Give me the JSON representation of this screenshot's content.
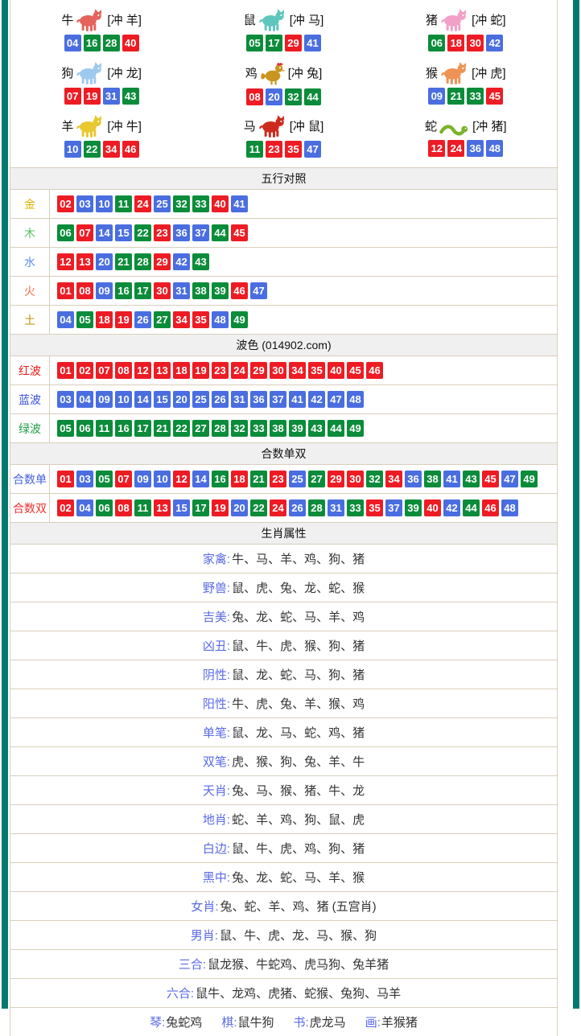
{
  "colors": {
    "frame": "#03796D",
    "table_border": "#D8CFBC",
    "header_bg": "#F0F0F0",
    "attr_label": "#5A6AE6"
  },
  "palette": {
    "red": "#ED1C24",
    "blue": "#4A6EE0",
    "green": "#0B8C3A"
  },
  "number_groups": {
    "red": [
      "01",
      "02",
      "07",
      "08",
      "12",
      "13",
      "18",
      "19",
      "23",
      "24",
      "29",
      "30",
      "34",
      "35",
      "40",
      "45",
      "46"
    ],
    "blue": [
      "03",
      "04",
      "09",
      "10",
      "14",
      "15",
      "20",
      "25",
      "26",
      "31",
      "36",
      "37",
      "41",
      "42",
      "47",
      "48"
    ],
    "green": [
      "05",
      "06",
      "11",
      "16",
      "17",
      "21",
      "22",
      "27",
      "28",
      "32",
      "33",
      "38",
      "39",
      "43",
      "44",
      "49"
    ]
  },
  "zodiac": {
    "cells": [
      {
        "name": "牛",
        "icon": "ox-icon",
        "shape": "quadruped",
        "color": "#E4635C",
        "clash": "[冲 羊]",
        "numbers": [
          "04",
          "16",
          "28",
          "40"
        ]
      },
      {
        "name": "鼠",
        "icon": "rat-icon",
        "shape": "quadruped",
        "color": "#5FC6BE",
        "clash": "[冲 马]",
        "numbers": [
          "05",
          "17",
          "29",
          "41"
        ]
      },
      {
        "name": "猪",
        "icon": "pig-icon",
        "shape": "quadruped",
        "color": "#F2A0C8",
        "clash": "[冲 蛇]",
        "numbers": [
          "06",
          "18",
          "30",
          "42"
        ]
      },
      {
        "name": "狗",
        "icon": "dog-icon",
        "shape": "quadruped",
        "color": "#9EC9EE",
        "clash": "[冲 龙]",
        "numbers": [
          "07",
          "19",
          "31",
          "43"
        ]
      },
      {
        "name": "鸡",
        "icon": "rooster-icon",
        "shape": "bird",
        "color": "#C99521",
        "clash": "[冲 兔]",
        "numbers": [
          "08",
          "20",
          "32",
          "44"
        ]
      },
      {
        "name": "猴",
        "icon": "monkey-icon",
        "shape": "quadruped",
        "color": "#EF9256",
        "clash": "[冲 虎]",
        "numbers": [
          "09",
          "21",
          "33",
          "45"
        ]
      },
      {
        "name": "羊",
        "icon": "goat-icon",
        "shape": "quadruped",
        "color": "#E9C832",
        "clash": "[冲 牛]",
        "numbers": [
          "10",
          "22",
          "34",
          "46"
        ]
      },
      {
        "name": "马",
        "icon": "horse-icon",
        "shape": "quadruped",
        "color": "#CD2A1E",
        "clash": "[冲 鼠]",
        "numbers": [
          "11",
          "23",
          "35",
          "47"
        ]
      },
      {
        "name": "蛇",
        "icon": "snake-icon",
        "shape": "snake",
        "color": "#7AB32A",
        "clash": "[冲 猪]",
        "numbers": [
          "12",
          "24",
          "36",
          "48"
        ]
      }
    ]
  },
  "sections": [
    {
      "title": "五行对照",
      "rows": [
        {
          "label": "金",
          "label_color": "#E0B400",
          "numbers": [
            "02",
            "03",
            "10",
            "11",
            "24",
            "25",
            "32",
            "33",
            "40",
            "41"
          ]
        },
        {
          "label": "木",
          "label_color": "#55C060",
          "numbers": [
            "06",
            "07",
            "14",
            "15",
            "22",
            "23",
            "36",
            "37",
            "44",
            "45"
          ]
        },
        {
          "label": "水",
          "label_color": "#5B8DEF",
          "numbers": [
            "12",
            "13",
            "20",
            "21",
            "28",
            "29",
            "42",
            "43"
          ]
        },
        {
          "label": "火",
          "label_color": "#F87247",
          "numbers": [
            "01",
            "08",
            "09",
            "16",
            "17",
            "30",
            "31",
            "38",
            "39",
            "46",
            "47"
          ]
        },
        {
          "label": "土",
          "label_color": "#B89200",
          "numbers": [
            "04",
            "05",
            "18",
            "19",
            "26",
            "27",
            "34",
            "35",
            "48",
            "49"
          ]
        }
      ]
    },
    {
      "title": "波色 (014902.com)",
      "rows": [
        {
          "label": "红波",
          "label_color": "#F31818",
          "numbers": [
            "01",
            "02",
            "07",
            "08",
            "12",
            "13",
            "18",
            "19",
            "23",
            "24",
            "29",
            "30",
            "34",
            "35",
            "40",
            "45",
            "46"
          ]
        },
        {
          "label": "蓝波",
          "label_color": "#3A50D8",
          "numbers": [
            "03",
            "04",
            "09",
            "10",
            "14",
            "15",
            "20",
            "25",
            "26",
            "31",
            "36",
            "37",
            "41",
            "42",
            "47",
            "48"
          ]
        },
        {
          "label": "绿波",
          "label_color": "#1F9E44",
          "numbers": [
            "05",
            "06",
            "11",
            "16",
            "17",
            "21",
            "22",
            "27",
            "28",
            "32",
            "33",
            "38",
            "39",
            "43",
            "44",
            "49"
          ]
        }
      ]
    },
    {
      "title": "合数单双",
      "rows": [
        {
          "label": "合数单",
          "label_color": "#4663E0",
          "numbers": [
            "01",
            "03",
            "05",
            "07",
            "09",
            "10",
            "12",
            "14",
            "16",
            "18",
            "21",
            "23",
            "25",
            "27",
            "29",
            "30",
            "32",
            "34",
            "36",
            "38",
            "41",
            "43",
            "45",
            "47",
            "49"
          ]
        },
        {
          "label": "合数双",
          "label_color": "#F03030",
          "numbers": [
            "02",
            "04",
            "06",
            "08",
            "11",
            "13",
            "15",
            "17",
            "19",
            "20",
            "22",
            "24",
            "26",
            "28",
            "31",
            "33",
            "35",
            "37",
            "39",
            "40",
            "42",
            "44",
            "46",
            "48"
          ]
        }
      ]
    }
  ],
  "attributes": {
    "title": "生肖属性",
    "rows": [
      {
        "label": "家禽",
        "value": "牛、马、羊、鸡、狗、猪"
      },
      {
        "label": "野兽",
        "value": "鼠、虎、兔、龙、蛇、猴"
      },
      {
        "label": "吉美",
        "value": "兔、龙、蛇、马、羊、鸡"
      },
      {
        "label": "凶丑",
        "value": "鼠、牛、虎、猴、狗、猪"
      },
      {
        "label": "阴性",
        "value": "鼠、龙、蛇、马、狗、猪"
      },
      {
        "label": "阳性",
        "value": "牛、虎、兔、羊、猴、鸡"
      },
      {
        "label": "单笔",
        "value": "鼠、龙、马、蛇、鸡、猪"
      },
      {
        "label": "双笔",
        "value": "虎、猴、狗、兔、羊、牛"
      },
      {
        "label": "天肖",
        "value": "兔、马、猴、猪、牛、龙"
      },
      {
        "label": "地肖",
        "value": "蛇、羊、鸡、狗、鼠、虎"
      },
      {
        "label": "白边",
        "value": "鼠、牛、虎、鸡、狗、猪"
      },
      {
        "label": "黑中",
        "value": "兔、龙、蛇、马、羊、猴"
      },
      {
        "label": "女肖",
        "value": "兔、蛇、羊、鸡、猪 (五宫肖)"
      },
      {
        "label": "男肖",
        "value": "鼠、牛、虎、龙、马、猴、狗"
      },
      {
        "label": "三合",
        "value": "鼠龙猴、牛蛇鸡、虎马狗、兔羊猪"
      },
      {
        "label": "六合",
        "value": "鼠牛、龙鸡、虎猪、蛇猴、兔狗、马羊"
      }
    ],
    "bottom_row": [
      {
        "label": "琴",
        "value": "兔蛇鸡"
      },
      {
        "label": "棋",
        "value": "鼠牛狗"
      },
      {
        "label": "书",
        "value": "虎龙马"
      },
      {
        "label": "画",
        "value": "羊猴猪"
      }
    ]
  }
}
